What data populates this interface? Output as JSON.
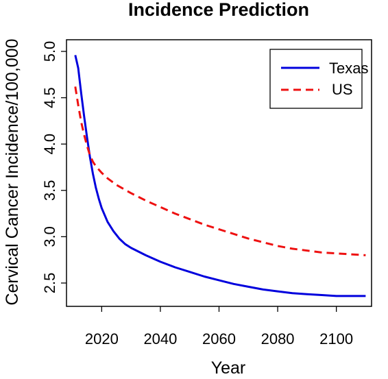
{
  "chart_data": {
    "type": "line",
    "title": "Incidence Prediction",
    "xlabel": "Year",
    "ylabel": "Cervical Cancer Incidence/100,000",
    "xlim": [
      2008,
      2112
    ],
    "ylim": [
      2.3,
      5.0
    ],
    "x_ticks": [
      2020,
      2040,
      2060,
      2080,
      2100
    ],
    "y_ticks": [
      2.5,
      3.0,
      3.5,
      4.0,
      4.5,
      5.0
    ],
    "y_tick_labels": [
      "2.5",
      "3.0",
      "3.5",
      "4.0",
      "4.5",
      "5.0"
    ],
    "grid": false,
    "legend_position": "top-right",
    "series": [
      {
        "name": "Texas",
        "color": "#0000dd",
        "line_style": "solid",
        "x": [
          2011,
          2012,
          2013,
          2014,
          2015,
          2016,
          2017,
          2018,
          2019,
          2020,
          2022,
          2024,
          2026,
          2028,
          2030,
          2035,
          2040,
          2045,
          2050,
          2055,
          2060,
          2065,
          2070,
          2075,
          2080,
          2085,
          2090,
          2095,
          2100,
          2105,
          2110
        ],
        "y": [
          4.96,
          4.82,
          4.55,
          4.3,
          4.07,
          3.86,
          3.68,
          3.53,
          3.41,
          3.31,
          3.16,
          3.06,
          2.98,
          2.92,
          2.88,
          2.8,
          2.73,
          2.67,
          2.62,
          2.57,
          2.53,
          2.49,
          2.46,
          2.43,
          2.41,
          2.39,
          2.38,
          2.37,
          2.36,
          2.36,
          2.36
        ]
      },
      {
        "name": "US",
        "color": "#ee1111",
        "line_style": "dashed",
        "x": [
          2011,
          2012,
          2013,
          2014,
          2015,
          2016,
          2017,
          2018,
          2020,
          2022,
          2025,
          2030,
          2035,
          2040,
          2045,
          2050,
          2055,
          2060,
          2065,
          2070,
          2075,
          2080,
          2085,
          2090,
          2095,
          2100,
          2105,
          2110
        ],
        "y": [
          4.62,
          4.42,
          4.24,
          4.1,
          3.98,
          3.88,
          3.81,
          3.76,
          3.69,
          3.63,
          3.56,
          3.47,
          3.39,
          3.32,
          3.25,
          3.19,
          3.13,
          3.08,
          3.03,
          2.98,
          2.94,
          2.9,
          2.87,
          2.85,
          2.83,
          2.82,
          2.81,
          2.8
        ]
      }
    ]
  }
}
